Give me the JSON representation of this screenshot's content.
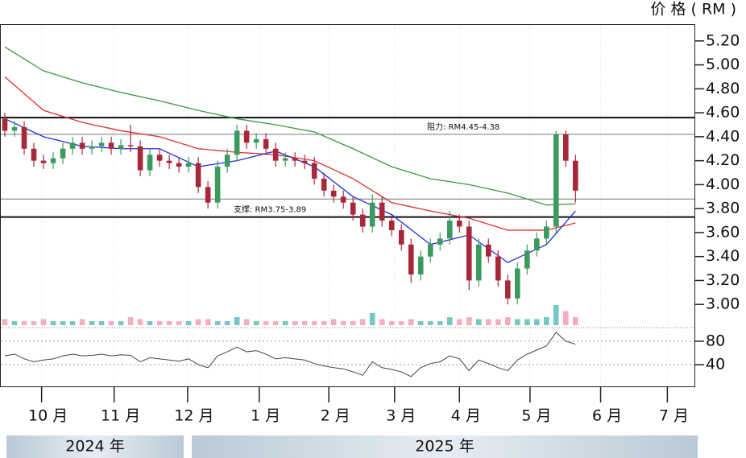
{
  "chart_data": [
    {
      "type": "candlestick",
      "y_label": "价 格 ( RM )",
      "open": [
        4.55,
        4.45,
        4.48,
        4.3,
        4.2,
        4.18,
        4.22,
        4.3,
        4.35,
        4.3,
        4.32,
        4.35,
        4.3,
        4.33,
        4.32,
        4.12,
        4.25,
        4.2,
        4.18,
        4.15,
        4.18,
        3.98,
        3.85,
        4.15,
        4.25,
        4.45,
        4.35,
        4.38,
        4.3,
        4.2,
        4.22,
        4.2,
        4.18,
        4.05,
        3.95,
        3.9,
        3.85,
        3.75,
        3.65,
        3.85,
        3.7,
        3.62,
        3.5,
        3.25,
        3.4,
        3.5,
        3.55,
        3.7,
        3.65,
        3.2,
        3.5,
        3.4,
        3.2,
        3.05,
        3.3,
        3.45,
        3.55,
        3.65,
        4.42,
        4.2
      ],
      "high": [
        4.6,
        4.53,
        4.53,
        4.35,
        4.25,
        4.27,
        4.35,
        4.4,
        4.4,
        4.37,
        4.4,
        4.4,
        4.38,
        4.5,
        4.37,
        4.3,
        4.3,
        4.25,
        4.23,
        4.23,
        4.23,
        4.03,
        4.2,
        4.3,
        4.5,
        4.5,
        4.43,
        4.43,
        4.35,
        4.27,
        4.27,
        4.25,
        4.23,
        4.1,
        4.0,
        3.95,
        3.9,
        3.8,
        3.92,
        3.9,
        3.75,
        3.67,
        3.55,
        3.45,
        3.55,
        3.6,
        3.78,
        3.75,
        3.7,
        3.55,
        3.55,
        3.45,
        3.25,
        3.35,
        3.5,
        3.6,
        3.7,
        4.45,
        4.45,
        4.25
      ],
      "low": [
        4.4,
        4.4,
        4.25,
        4.15,
        4.13,
        4.13,
        4.17,
        4.25,
        4.25,
        4.25,
        4.27,
        4.25,
        4.25,
        4.27,
        4.07,
        4.07,
        4.15,
        4.13,
        4.1,
        4.1,
        3.93,
        3.8,
        3.8,
        4.1,
        4.2,
        4.3,
        4.3,
        4.25,
        4.15,
        4.15,
        4.15,
        4.13,
        4.0,
        3.9,
        3.85,
        3.8,
        3.7,
        3.6,
        3.6,
        3.65,
        3.57,
        3.45,
        3.18,
        3.2,
        3.35,
        3.45,
        3.5,
        3.6,
        3.12,
        3.15,
        3.35,
        3.15,
        3.0,
        3.0,
        3.25,
        3.4,
        3.5,
        3.6,
        4.15,
        3.85
      ],
      "close": [
        4.45,
        4.48,
        4.3,
        4.2,
        4.18,
        4.22,
        4.3,
        4.35,
        4.3,
        4.32,
        4.35,
        4.3,
        4.33,
        4.32,
        4.12,
        4.25,
        4.2,
        4.18,
        4.15,
        4.18,
        3.98,
        3.85,
        4.15,
        4.25,
        4.45,
        4.35,
        4.38,
        4.3,
        4.2,
        4.22,
        4.2,
        4.18,
        4.05,
        3.95,
        3.9,
        3.85,
        3.75,
        3.65,
        3.85,
        3.7,
        3.62,
        3.5,
        3.25,
        3.4,
        3.5,
        3.55,
        3.7,
        3.65,
        3.2,
        3.5,
        3.4,
        3.2,
        3.05,
        3.3,
        3.45,
        3.55,
        3.65,
        4.42,
        4.2,
        3.95
      ],
      "up_color": "#3c9a5f",
      "down_color": "#a8283a",
      "volume": [
        3,
        2,
        2,
        2,
        3,
        2,
        2,
        2,
        3,
        2,
        2,
        2,
        2,
        4,
        3,
        2,
        2,
        2,
        2,
        2,
        3,
        3,
        2,
        2,
        4,
        3,
        2,
        2,
        2,
        2,
        2,
        2,
        2,
        2,
        3,
        2,
        2,
        3,
        6,
        3,
        2,
        2,
        3,
        2,
        2,
        2,
        4,
        3,
        4,
        3,
        3,
        3,
        4,
        3,
        3,
        3,
        4,
        10,
        7,
        4
      ],
      "volume_colors": [
        "#5fbcbc",
        "#f2a0b4"
      ],
      "vlim": [
        0,
        12
      ],
      "ma": [
        {
          "color": "#3a9a3a",
          "x": [
            0,
            4,
            8,
            12,
            16,
            20,
            24,
            28,
            32,
            36,
            40,
            44,
            48,
            52,
            56,
            59
          ],
          "values": [
            5.15,
            4.95,
            4.85,
            4.77,
            4.7,
            4.62,
            4.55,
            4.5,
            4.44,
            4.3,
            4.15,
            4.05,
            4.0,
            3.93,
            3.83,
            3.84
          ]
        },
        {
          "color": "#e03030",
          "x": [
            0,
            4,
            8,
            12,
            16,
            20,
            24,
            28,
            32,
            36,
            40,
            44,
            48,
            52,
            56,
            59
          ],
          "values": [
            4.9,
            4.62,
            4.52,
            4.45,
            4.4,
            4.3,
            4.27,
            4.25,
            4.2,
            4.05,
            3.85,
            3.78,
            3.72,
            3.62,
            3.62,
            3.68
          ]
        },
        {
          "color": "#2030e0",
          "x": [
            0,
            4,
            8,
            12,
            16,
            20,
            24,
            28,
            32,
            36,
            40,
            44,
            48,
            52,
            56,
            59
          ],
          "values": [
            4.55,
            4.4,
            4.32,
            4.3,
            4.3,
            4.15,
            4.2,
            4.28,
            4.15,
            3.9,
            3.75,
            3.5,
            3.58,
            3.35,
            3.5,
            3.78
          ]
        }
      ],
      "levels": [
        {
          "value": 4.56,
          "weight": "bold"
        },
        {
          "value": 4.42,
          "weight": "thin",
          "label": "阻力: RM4.45-4.38"
        },
        {
          "value": 3.88,
          "weight": "thin"
        },
        {
          "value": 3.73,
          "weight": "bold",
          "label": "支撑: RM3.75-3.89"
        }
      ],
      "xlim": [
        -0.5,
        71.3
      ],
      "xticks": [
        {
          "value": 3.8,
          "label": "10 月"
        },
        {
          "value": 11.3,
          "label": "11 月"
        },
        {
          "value": 18.9,
          "label": "12 月"
        },
        {
          "value": 26.3,
          "label": "1 月"
        },
        {
          "value": 33.5,
          "label": "2 月"
        },
        {
          "value": 40.3,
          "label": "3 月"
        },
        {
          "value": 47,
          "label": "4 月"
        },
        {
          "value": 54.3,
          "label": "5 月"
        },
        {
          "value": 61.6,
          "label": "6 月"
        },
        {
          "value": 68.5,
          "label": "7 月"
        }
      ],
      "ylim": [
        2.82,
        5.34
      ],
      "yticks": [
        {
          "value": 3,
          "label": "3.00"
        },
        {
          "value": 3.2,
          "label": "3.20"
        },
        {
          "value": 3.4,
          "label": "3.40"
        },
        {
          "value": 3.6,
          "label": "3.60"
        },
        {
          "value": 3.8,
          "label": "3.80"
        },
        {
          "value": 4,
          "label": "4.00"
        },
        {
          "value": 4.2,
          "label": "4.20"
        },
        {
          "value": 4.4,
          "label": "4.40"
        },
        {
          "value": 4.6,
          "label": "4.60"
        },
        {
          "value": 4.8,
          "label": "4.80"
        },
        {
          "value": 5,
          "label": "5.00"
        },
        {
          "value": 5.2,
          "label": "5.20"
        }
      ]
    },
    {
      "type": "line",
      "color": "#444444",
      "values": [
        55,
        58,
        50,
        45,
        48,
        50,
        55,
        58,
        55,
        56,
        58,
        55,
        57,
        56,
        45,
        52,
        50,
        48,
        46,
        50,
        40,
        35,
        55,
        62,
        70,
        62,
        64,
        58,
        50,
        52,
        50,
        48,
        42,
        38,
        35,
        33,
        28,
        22,
        45,
        35,
        32,
        28,
        20,
        35,
        42,
        45,
        55,
        50,
        30,
        48,
        42,
        35,
        30,
        48,
        58,
        65,
        72,
        95,
        80,
        75
      ],
      "ylim": [
        6,
        99
      ],
      "yticks": [
        40,
        80
      ]
    }
  ],
  "period_labels": [
    "2024 年",
    "2025 年"
  ]
}
